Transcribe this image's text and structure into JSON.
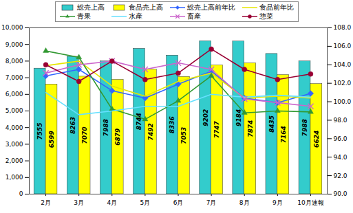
{
  "chart_data": {
    "type": "bar",
    "categories": [
      "2月",
      "3月",
      "4月",
      "5月",
      "6月",
      "7月",
      "8月",
      "9月",
      "10月速報"
    ],
    "series": [
      {
        "name": "総売上高",
        "type": "bar",
        "color": "#33cccc",
        "values": [
          7555,
          8263,
          7988,
          8744,
          8336,
          9202,
          9184,
          8435,
          7988
        ]
      },
      {
        "name": "食品売上高",
        "type": "bar",
        "color": "#ffff00",
        "values": [
          6599,
          7070,
          6879,
          7492,
          7053,
          7747,
          7874,
          7164,
          6624
        ]
      },
      {
        "name": "総売上高前年比",
        "type": "line",
        "axis": "y2",
        "color": "#3366ff",
        "marker": "diamond",
        "values": [
          102.8,
          103.5,
          101.2,
          100.4,
          101.9,
          103.3,
          100.4,
          99.9,
          100.9
        ]
      },
      {
        "name": "食品前年比",
        "type": "line",
        "axis": "y2",
        "color": "#e6e600",
        "marker": "none",
        "values": [
          103.9,
          104.4,
          101.7,
          100.6,
          102.2,
          103.1,
          100.4,
          100.6,
          100.4
        ]
      },
      {
        "name": "青果",
        "type": "line",
        "axis": "y2",
        "color": "#339933",
        "marker": "triangle",
        "values": [
          105.5,
          104.8,
          99.2,
          98.1,
          100.1,
          102.8,
          98.8,
          99.0,
          98.9
        ]
      },
      {
        "name": "水産",
        "type": "line",
        "axis": "y2",
        "color": "#66e0ff",
        "marker": "none",
        "values": [
          101.0,
          98.6,
          99.0,
          99.5,
          99.5,
          100.8,
          100.5,
          100.7,
          100.5
        ]
      },
      {
        "name": "畜産",
        "type": "line",
        "axis": "y2",
        "color": "#cc66cc",
        "marker": "times",
        "values": [
          103.1,
          104.0,
          104.4,
          103.5,
          104.2,
          103.5,
          100.3,
          99.9,
          99.5
        ]
      },
      {
        "name": "惣菜",
        "type": "line",
        "axis": "y2",
        "color": "#990033",
        "marker": "circle",
        "values": [
          104.0,
          102.2,
          104.4,
          102.4,
          103.1,
          105.7,
          103.5,
          102.4,
          103.0
        ]
      }
    ],
    "ylim": [
      0,
      10000
    ],
    "yticks": [
      0,
      {
        "value": 1000,
        "label": "1,000"
      },
      {
        "value": 2000,
        "label": "2,000"
      },
      {
        "value": 3000,
        "label": "3,000"
      },
      {
        "value": 4000,
        "label": "4,000"
      },
      {
        "value": 5000,
        "label": "5,000"
      },
      {
        "value": 6000,
        "label": "6,000"
      },
      {
        "value": 7000,
        "label": "7,000"
      },
      {
        "value": 8000,
        "label": "8,000"
      },
      {
        "value": 9000,
        "label": "9,000"
      },
      {
        "value": 10000,
        "label": "10,000"
      }
    ],
    "y2lim": [
      90,
      108
    ],
    "y2ticks": [
      {
        "value": 90,
        "label": "90.0"
      },
      {
        "value": 92,
        "label": "92.0"
      },
      {
        "value": 94,
        "label": "94.0"
      },
      {
        "value": 96,
        "label": "96.0"
      },
      {
        "value": 98,
        "label": "98.0"
      },
      {
        "value": 100,
        "label": "100.0"
      },
      {
        "value": 102,
        "label": "102.0"
      },
      {
        "value": 104,
        "label": "104.0"
      },
      {
        "value": 106,
        "label": "106.0"
      },
      {
        "value": 108,
        "label": "108.0"
      }
    ],
    "data_labels": true,
    "grid": false,
    "legend": "top"
  }
}
